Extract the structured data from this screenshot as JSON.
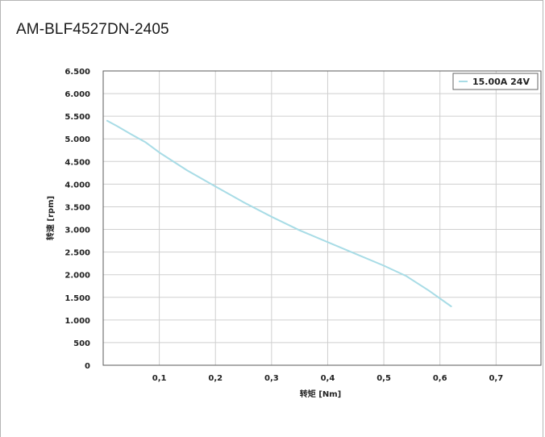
{
  "header": {
    "title": "AM-BLF4527DN-2405"
  },
  "chart_data": {
    "type": "line",
    "title": "AM-BLF4527DN-2405",
    "xlabel": "转矩 [Nm]",
    "ylabel": "转速 [rpm]",
    "xlim": [
      0,
      0.78
    ],
    "ylim": [
      0,
      6500
    ],
    "x_ticks": [
      0.1,
      0.2,
      0.3,
      0.4,
      0.5,
      0.6,
      0.7
    ],
    "x_tick_labels": [
      "0,1",
      "0,2",
      "0,3",
      "0,4",
      "0,5",
      "0,6",
      "0,7"
    ],
    "y_ticks": [
      0,
      500,
      1000,
      1500,
      2000,
      2500,
      3000,
      3500,
      4000,
      4500,
      5000,
      5500,
      6000,
      6500
    ],
    "y_tick_labels": [
      "0",
      "500",
      "1.000",
      "1.500",
      "2.000",
      "2.500",
      "3.000",
      "3.500",
      "4.000",
      "4.500",
      "5.000",
      "5.500",
      "6.000",
      "6.500"
    ],
    "grid": true,
    "legend_position": "top-right",
    "series": [
      {
        "name": "15.00A 24V",
        "color": "#a8dce6",
        "x": [
          0.007,
          0.025,
          0.05,
          0.075,
          0.1,
          0.15,
          0.2,
          0.25,
          0.3,
          0.35,
          0.4,
          0.45,
          0.5,
          0.54,
          0.58,
          0.62
        ],
        "y": [
          5400,
          5280,
          5100,
          4930,
          4700,
          4300,
          3950,
          3600,
          3280,
          2980,
          2720,
          2460,
          2200,
          1970,
          1650,
          1300
        ]
      }
    ]
  }
}
